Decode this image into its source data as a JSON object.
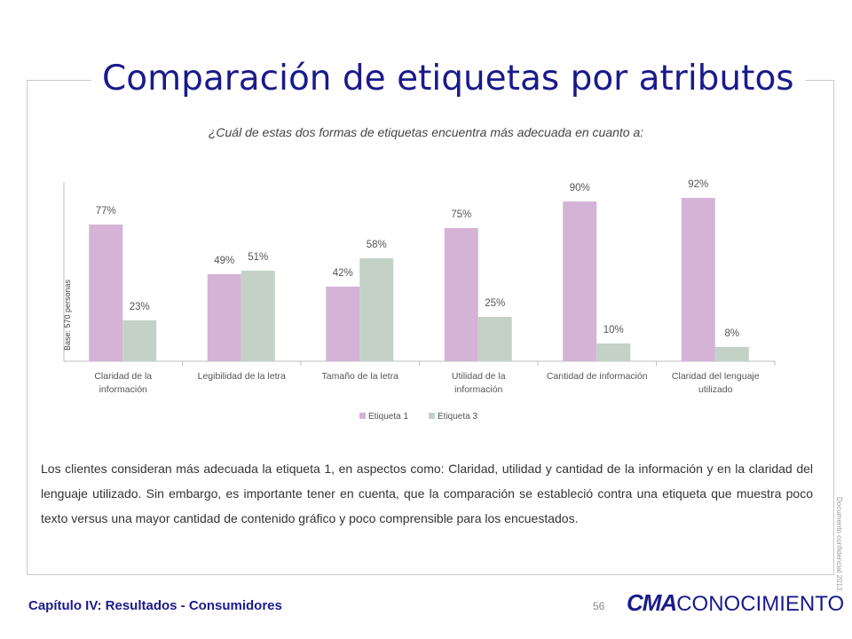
{
  "page": {
    "title": "Comparación de etiquetas por atributos",
    "question": "¿Cuál de estas dos formas de etiquetas encuentra más adecuada en cuanto a:",
    "body": "Los clientes consideran más adecuada la etiqueta 1, en aspectos como: Claridad, utilidad y cantidad de la información y en la claridad del lenguaje utilizado. Sin embargo, es importante tener en cuenta, que la comparación se estableció contra una etiqueta que muestra poco texto versus una mayor cantidad de contenido gráfico y poco comprensible para los encuestados.",
    "side_note": "Documento confidencial 2013.",
    "footer_chapter": "Capítulo IV: Resultados - Consumidores",
    "page_number": "56",
    "logo_bold": "CMA",
    "logo_light": "CONOCIMIENTO"
  },
  "chart_data": {
    "type": "bar",
    "ylabel": "Base: 570 personas",
    "categories": [
      [
        "Claridad de la",
        "información"
      ],
      [
        "Legibilidad de la letra"
      ],
      [
        "Tamaño de la letra"
      ],
      [
        "Utilidad de la",
        "información"
      ],
      [
        "Cantidad de información"
      ],
      [
        "Claridad del lenguaje",
        "utilizado"
      ]
    ],
    "series": [
      {
        "name": "Etiqueta 1",
        "color": "#d4b3d6",
        "values": [
          77,
          49,
          42,
          75,
          90,
          92
        ],
        "labels": [
          "77%",
          "49%",
          "42%",
          "75%",
          "90%",
          "92%"
        ]
      },
      {
        "name": "Etiqueta 3",
        "color": "#c3d1c7",
        "values": [
          23,
          51,
          58,
          25,
          10,
          8
        ],
        "labels": [
          "23%",
          "51%",
          "58%",
          "25%",
          "10%",
          "8%"
        ]
      }
    ],
    "ylim": [
      0,
      100
    ],
    "grid": false,
    "legend": "bottom"
  },
  "colors": {
    "title": "#1a1a8c",
    "frame": "#c9c9c9",
    "axis": "#bfbfbf",
    "label": "#555555"
  }
}
